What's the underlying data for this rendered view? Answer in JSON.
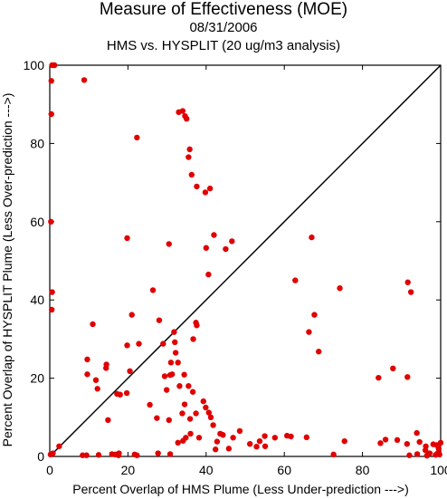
{
  "chart_data": {
    "type": "scatter",
    "title": "Measure of Effectiveness (MOE)",
    "subtitle_date": "08/31/2006",
    "subtitle_analysis": "HMS vs. HYSPLIT  (20 ug/m3 analysis)",
    "xlabel": "Percent Overlap of HMS Plume (Less Under-prediction --->)",
    "ylabel": "Percent Overlap of HYSPLIT Plume (Less Over-prediction --->)",
    "xlim": [
      0,
      100
    ],
    "ylim": [
      0,
      100
    ],
    "x_ticks": [
      "0",
      "20",
      "40",
      "60",
      "80",
      "100"
    ],
    "y_ticks": [
      "0",
      "20",
      "40",
      "60",
      "80",
      "100"
    ],
    "reference_line": "y = x",
    "grid": false,
    "point_color": "#e00000",
    "points": [
      [
        0.6,
        100
      ],
      [
        1.2,
        100
      ],
      [
        0.4,
        96
      ],
      [
        0.4,
        87.5
      ],
      [
        0.3,
        60
      ],
      [
        0.6,
        42
      ],
      [
        0.5,
        37.5
      ],
      [
        0.2,
        0.5
      ],
      [
        0.8,
        0.8
      ],
      [
        2.4,
        2.6
      ],
      [
        8.8,
        96.2
      ],
      [
        33,
        88
      ],
      [
        34,
        88.3
      ],
      [
        34.6,
        87
      ],
      [
        35,
        86.3
      ],
      [
        22.3,
        81.5
      ],
      [
        35.8,
        78.5
      ],
      [
        35.5,
        76.5
      ],
      [
        36.3,
        72
      ],
      [
        37.6,
        69
      ],
      [
        41,
        68.5
      ],
      [
        39.8,
        67.5
      ],
      [
        42,
        56.6
      ],
      [
        19.8,
        55.8
      ],
      [
        46.6,
        55
      ],
      [
        30.5,
        54.3
      ],
      [
        45,
        53
      ],
      [
        40,
        53.3
      ],
      [
        40.6,
        46.5
      ],
      [
        62.8,
        45
      ],
      [
        74.2,
        43
      ],
      [
        91.6,
        44.5
      ],
      [
        92.4,
        42
      ],
      [
        26.4,
        42.5
      ],
      [
        67,
        56
      ],
      [
        67.7,
        36.2
      ],
      [
        66.3,
        31.8
      ],
      [
        68.8,
        26.8
      ],
      [
        11,
        33.8
      ],
      [
        21,
        36.2
      ],
      [
        28,
        34.8
      ],
      [
        31.8,
        31.8
      ],
      [
        29,
        28.8
      ],
      [
        32,
        29.2
      ],
      [
        22.8,
        28.8
      ],
      [
        19.8,
        28.4
      ],
      [
        32.8,
        24
      ],
      [
        32.2,
        26.5
      ],
      [
        37.6,
        33.5
      ],
      [
        37.4,
        34.2
      ],
      [
        36.7,
        30
      ],
      [
        9.6,
        24.8
      ],
      [
        9.6,
        21
      ],
      [
        14.4,
        22.6
      ],
      [
        14.5,
        23.5
      ],
      [
        11.8,
        19.5
      ],
      [
        12.2,
        17.3
      ],
      [
        17.2,
        16
      ],
      [
        18,
        15.8
      ],
      [
        19.7,
        16.2
      ],
      [
        20.5,
        21.8
      ],
      [
        29.4,
        20.5
      ],
      [
        30.8,
        20.8
      ],
      [
        31.3,
        21
      ],
      [
        31,
        24
      ],
      [
        29.9,
        17
      ],
      [
        33.2,
        18
      ],
      [
        34.4,
        20.9
      ],
      [
        35.5,
        18
      ],
      [
        36.6,
        16.5
      ],
      [
        39.3,
        14.1
      ],
      [
        39.9,
        12.5
      ],
      [
        40.7,
        11.2
      ],
      [
        34.5,
        13.3
      ],
      [
        33.9,
        11
      ],
      [
        37.4,
        11
      ],
      [
        35.9,
        9.6
      ],
      [
        41.2,
        10
      ],
      [
        41.8,
        8
      ],
      [
        43.6,
        5.8
      ],
      [
        44.3,
        5.5
      ],
      [
        48.6,
        6.5
      ],
      [
        36,
        5.8
      ],
      [
        34.8,
        4.8
      ],
      [
        38.2,
        4.8
      ],
      [
        42.8,
        3.8
      ],
      [
        42.4,
        1.8
      ],
      [
        45.8,
        2
      ],
      [
        46.9,
        4.8
      ],
      [
        34.1,
        4
      ],
      [
        32.8,
        3.5
      ],
      [
        14.9,
        9.3
      ],
      [
        25.6,
        13.2
      ],
      [
        27.4,
        9.8
      ],
      [
        30.5,
        9.3
      ],
      [
        27.7,
        0.8
      ],
      [
        30.8,
        0.6
      ],
      [
        16.8,
        0.5
      ],
      [
        17.7,
        0.8
      ],
      [
        15.9,
        0.6
      ],
      [
        17.6,
        0.3
      ],
      [
        12.5,
        0.4
      ],
      [
        8.4,
        0.3
      ],
      [
        9.4,
        0.3
      ],
      [
        21.7,
        0.5
      ],
      [
        22.3,
        0.3
      ],
      [
        57.6,
        4.8
      ],
      [
        55,
        5.2
      ],
      [
        51.2,
        3.2
      ],
      [
        52.9,
        2.5
      ],
      [
        53.7,
        3.9
      ],
      [
        55.1,
        2.6
      ],
      [
        60.7,
        5.3
      ],
      [
        61.7,
        5.1
      ],
      [
        65.7,
        4.9
      ],
      [
        72.6,
        0.5
      ],
      [
        75.4,
        3.9
      ],
      [
        84.1,
        20.1
      ],
      [
        87.8,
        22.5
      ],
      [
        91.5,
        20.3
      ],
      [
        84.6,
        3.4
      ],
      [
        85.9,
        4.3
      ],
      [
        88.9,
        4.2
      ],
      [
        91.4,
        3.2
      ],
      [
        92,
        0.3
      ],
      [
        93.9,
        6
      ],
      [
        94,
        0.6
      ],
      [
        94.6,
        3.7
      ],
      [
        96.2,
        2.6
      ],
      [
        96.1,
        1.6
      ],
      [
        97.2,
        0.8
      ],
      [
        98.1,
        3.1
      ],
      [
        99,
        2.9
      ],
      [
        99.5,
        2
      ],
      [
        99.3,
        0.9
      ],
      [
        100,
        3.5
      ],
      [
        98.7,
        0.4
      ],
      [
        99.7,
        0.5
      ],
      [
        96.5,
        0.2
      ]
    ]
  }
}
